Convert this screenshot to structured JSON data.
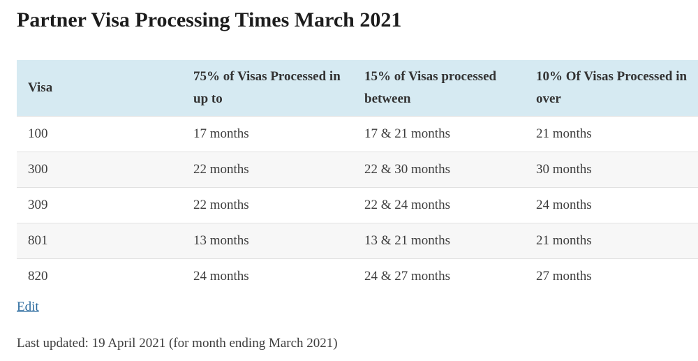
{
  "page": {
    "title": "Partner Visa Processing Times March 2021",
    "edit_label": "Edit",
    "last_updated": "Last updated: 19 April 2021 (for month ending March 2021)"
  },
  "table": {
    "columns": [
      "Visa",
      "75% of Visas Processed in up to",
      "15% of Visas processed between",
      "10% Of Visas Processed in over"
    ],
    "rows": [
      {
        "visa": "100",
        "p75": "17 months",
        "p15": "17 & 21 months",
        "p10": "21 months"
      },
      {
        "visa": "300",
        "p75": "22 months",
        "p15": "22 & 30 months",
        "p10": "30 months"
      },
      {
        "visa": "309",
        "p75": "22 months",
        "p15": "22 & 24 months",
        "p10": "24 months"
      },
      {
        "visa": "801",
        "p75": "13 months",
        "p15": "13 & 21 months",
        "p10": "21 months"
      },
      {
        "visa": "820",
        "p75": "24 months",
        "p15": "24 & 27 months",
        "p10": "27 months"
      }
    ]
  },
  "colors": {
    "header_background": "#d6eaf2",
    "alternate_row_background": "#f7f7f7",
    "row_border": "#e1e1e1",
    "link": "#2a6a9e",
    "title_text": "#1c1c1c",
    "body_text": "#3d3d3d"
  }
}
